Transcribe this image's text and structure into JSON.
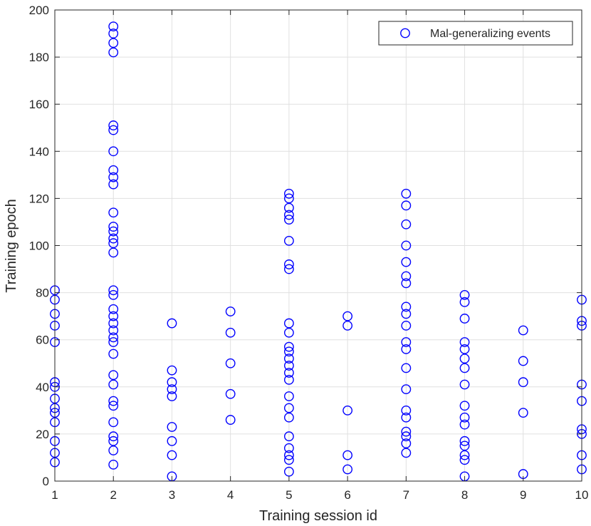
{
  "chart_data": {
    "type": "scatter",
    "title": "",
    "xlabel": "Training session id",
    "ylabel": "Training epoch",
    "xlim": [
      1,
      10
    ],
    "ylim": [
      0,
      200
    ],
    "xticks": [
      1,
      2,
      3,
      4,
      5,
      6,
      7,
      8,
      9,
      10
    ],
    "yticks": [
      0,
      20,
      40,
      60,
      80,
      100,
      120,
      140,
      160,
      180,
      200
    ],
    "grid": true,
    "legend_position": "top-right",
    "series": [
      {
        "name": "Mal-generalizing events",
        "color": "#0000ff",
        "marker": "circle-open",
        "points": [
          [
            1,
            81
          ],
          [
            1,
            77
          ],
          [
            1,
            71
          ],
          [
            1,
            66
          ],
          [
            1,
            59
          ],
          [
            1,
            42
          ],
          [
            1,
            40
          ],
          [
            1,
            35
          ],
          [
            1,
            31
          ],
          [
            1,
            29
          ],
          [
            1,
            25
          ],
          [
            1,
            17
          ],
          [
            1,
            12
          ],
          [
            1,
            8
          ],
          [
            2,
            193
          ],
          [
            2,
            190
          ],
          [
            2,
            186
          ],
          [
            2,
            182
          ],
          [
            2,
            151
          ],
          [
            2,
            149
          ],
          [
            2,
            140
          ],
          [
            2,
            132
          ],
          [
            2,
            129
          ],
          [
            2,
            126
          ],
          [
            2,
            114
          ],
          [
            2,
            108
          ],
          [
            2,
            106
          ],
          [
            2,
            103
          ],
          [
            2,
            101
          ],
          [
            2,
            97
          ],
          [
            2,
            81
          ],
          [
            2,
            79
          ],
          [
            2,
            73
          ],
          [
            2,
            70
          ],
          [
            2,
            67
          ],
          [
            2,
            64
          ],
          [
            2,
            61
          ],
          [
            2,
            59
          ],
          [
            2,
            54
          ],
          [
            2,
            45
          ],
          [
            2,
            41
          ],
          [
            2,
            34
          ],
          [
            2,
            32
          ],
          [
            2,
            25
          ],
          [
            2,
            19
          ],
          [
            2,
            17
          ],
          [
            2,
            13
          ],
          [
            2,
            7
          ],
          [
            3,
            67
          ],
          [
            3,
            47
          ],
          [
            3,
            42
          ],
          [
            3,
            39
          ],
          [
            3,
            36
          ],
          [
            3,
            23
          ],
          [
            3,
            17
          ],
          [
            3,
            11
          ],
          [
            3,
            2
          ],
          [
            4,
            72
          ],
          [
            4,
            63
          ],
          [
            4,
            50
          ],
          [
            4,
            37
          ],
          [
            4,
            26
          ],
          [
            5,
            122
          ],
          [
            5,
            120
          ],
          [
            5,
            116
          ],
          [
            5,
            113
          ],
          [
            5,
            111
          ],
          [
            5,
            102
          ],
          [
            5,
            92
          ],
          [
            5,
            90
          ],
          [
            5,
            67
          ],
          [
            5,
            63
          ],
          [
            5,
            57
          ],
          [
            5,
            55
          ],
          [
            5,
            52
          ],
          [
            5,
            49
          ],
          [
            5,
            46
          ],
          [
            5,
            43
          ],
          [
            5,
            36
          ],
          [
            5,
            31
          ],
          [
            5,
            27
          ],
          [
            5,
            19
          ],
          [
            5,
            14
          ],
          [
            5,
            11
          ],
          [
            5,
            9
          ],
          [
            5,
            4
          ],
          [
            6,
            70
          ],
          [
            6,
            66
          ],
          [
            6,
            30
          ],
          [
            6,
            11
          ],
          [
            6,
            5
          ],
          [
            7,
            122
          ],
          [
            7,
            117
          ],
          [
            7,
            109
          ],
          [
            7,
            100
          ],
          [
            7,
            93
          ],
          [
            7,
            87
          ],
          [
            7,
            84
          ],
          [
            7,
            74
          ],
          [
            7,
            71
          ],
          [
            7,
            66
          ],
          [
            7,
            59
          ],
          [
            7,
            56
          ],
          [
            7,
            48
          ],
          [
            7,
            39
          ],
          [
            7,
            30
          ],
          [
            7,
            27
          ],
          [
            7,
            21
          ],
          [
            7,
            19
          ],
          [
            7,
            16
          ],
          [
            7,
            12
          ],
          [
            8,
            79
          ],
          [
            8,
            76
          ],
          [
            8,
            69
          ],
          [
            8,
            59
          ],
          [
            8,
            56
          ],
          [
            8,
            52
          ],
          [
            8,
            48
          ],
          [
            8,
            41
          ],
          [
            8,
            32
          ],
          [
            8,
            27
          ],
          [
            8,
            24
          ],
          [
            8,
            17
          ],
          [
            8,
            15
          ],
          [
            8,
            11
          ],
          [
            8,
            9
          ],
          [
            8,
            2
          ],
          [
            9,
            64
          ],
          [
            9,
            51
          ],
          [
            9,
            42
          ],
          [
            9,
            29
          ],
          [
            9,
            3
          ],
          [
            10,
            77
          ],
          [
            10,
            68
          ],
          [
            10,
            66
          ],
          [
            10,
            41
          ],
          [
            10,
            34
          ],
          [
            10,
            22
          ],
          [
            10,
            20
          ],
          [
            10,
            11
          ],
          [
            10,
            5
          ]
        ]
      }
    ]
  }
}
